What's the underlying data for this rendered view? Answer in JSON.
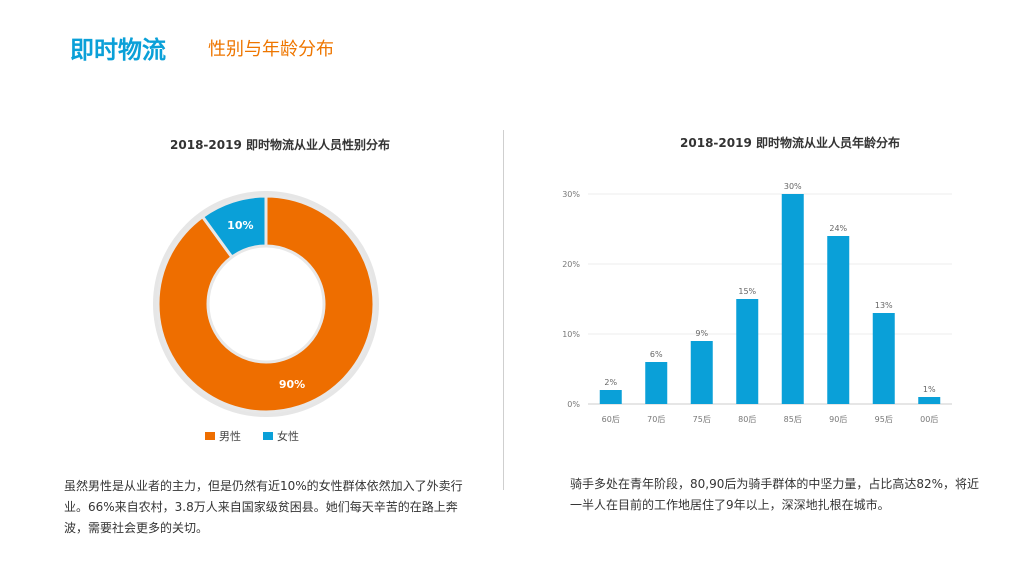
{
  "header": {
    "title": "即时物流",
    "subtitle": "性别与年龄分布"
  },
  "colors": {
    "male": "#ee6e00",
    "female": "#0aa0d8",
    "bar": "#0aa0d8",
    "accent_title": "#0aa0d8",
    "accent_subtitle": "#ee7600"
  },
  "chart_data": [
    {
      "type": "pie",
      "title": "2018-2019 即时物流从业人员性别分布",
      "categories": [
        "男性",
        "女性"
      ],
      "values": [
        90,
        10
      ],
      "labels": [
        "90%",
        "10%"
      ],
      "legend": "bottom"
    },
    {
      "type": "bar",
      "title": "2018-2019 即时物流从业人员年龄分布",
      "categories": [
        "60后",
        "70后",
        "75后",
        "80后",
        "85后",
        "90后",
        "95后",
        "00后"
      ],
      "values": [
        2,
        6,
        9,
        15,
        30,
        24,
        13,
        1
      ],
      "data_labels": [
        "2%",
        "6%",
        "9%",
        "15%",
        "30%",
        "24%",
        "13%",
        "1%"
      ],
      "ylim": [
        0,
        30
      ],
      "yticks": [
        "0%",
        "10%",
        "20%",
        "30%"
      ],
      "grid": true
    }
  ],
  "captions": {
    "left": "虽然男性是从业者的主力，但是仍然有近10%的女性群体依然加入了外卖行业。66%来自农村，3.8万人来自国家级贫困县。她们每天辛苦的在路上奔波，需要社会更多的关切。",
    "right": "骑手多处在青年阶段，80,90后为骑手群体的中坚力量，占比高达82%，将近一半人在目前的工作地居住了9年以上，深深地扎根在城市。"
  }
}
